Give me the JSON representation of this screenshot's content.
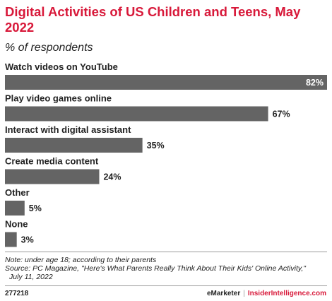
{
  "chart_data": {
    "type": "bar",
    "orientation": "horizontal",
    "title": "Digital Activities of US Children and Teens, May 2022",
    "subtitle": "% of respondents",
    "categories": [
      "Watch videos on YouTube",
      "Play video games online",
      "Interact with digital assistant",
      "Create media content",
      "Other",
      "None"
    ],
    "values": [
      82,
      67,
      35,
      24,
      5,
      3
    ],
    "value_labels": [
      "82%",
      "67%",
      "35%",
      "24%",
      "5%",
      "3%"
    ],
    "xlim": [
      0,
      82
    ],
    "bar_color": "#646464",
    "grid": false,
    "legend": "none"
  },
  "notes": {
    "line1": "Note: under age 18; according to their parents",
    "line2": "Source: PC Magazine, \"Here's What Parents Really Think About Their Kids' Online Activity,\"",
    "line3": "July 11, 2022"
  },
  "footer": {
    "chart_id": "277218",
    "brand": "eMarketer",
    "separator": "|",
    "brand2": "InsiderIntelligence.com"
  },
  "colors": {
    "accent": "#d8193a",
    "bar": "#646464",
    "rule": "#999999"
  }
}
